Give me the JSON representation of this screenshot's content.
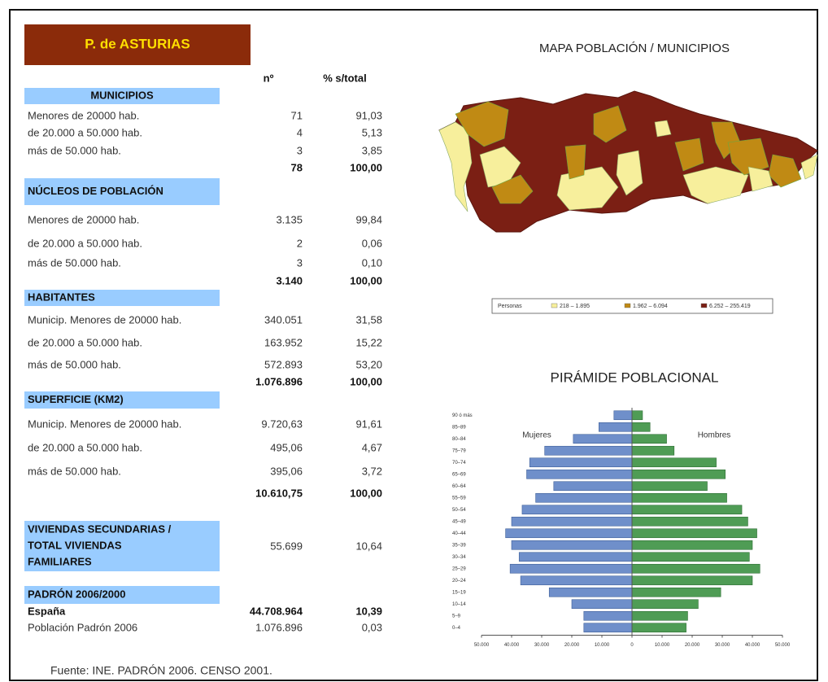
{
  "header": {
    "title": "P. de ASTURIAS",
    "col_n": "nº",
    "col_pct": "% s/total"
  },
  "sections": [
    {
      "header": [
        "MUNICIPIOS"
      ],
      "rows": [
        [
          "Menores de 20000 hab.",
          "71",
          "91,03"
        ],
        [
          "de 20.000 a 50.000 hab.",
          "4",
          "5,13"
        ],
        [
          "más de 50.000 hab.",
          "3",
          "3,85"
        ]
      ],
      "total": [
        "78",
        "100,00"
      ]
    },
    {
      "header": [
        "NÚCLEOS DE POBLACIÓN"
      ],
      "rows": [
        [
          "Menores de 20000 hab.",
          "3.135",
          "99,84"
        ],
        [
          "de 20.000 a 50.000 hab.",
          "2",
          "0,06"
        ],
        [
          "más de 50.000 hab.",
          "3",
          "0,10"
        ]
      ],
      "total": [
        "3.140",
        "100,00"
      ]
    },
    {
      "header": [
        "HABITANTES"
      ],
      "rows": [
        [
          "Municip. Menores de 20000 hab.",
          "340.051",
          "31,58"
        ],
        [
          "de 20.000 a 50.000 hab.",
          "163.952",
          "15,22"
        ],
        [
          "más de 50.000 hab.",
          "572.893",
          "53,20"
        ]
      ],
      "total": [
        "1.076.896",
        "100,00"
      ]
    },
    {
      "header": [
        "SUPERFICIE (KM2)"
      ],
      "rows": [
        [
          "Municip. Menores de 20000 hab.",
          "9.720,63",
          "91,61"
        ],
        [
          "de 20.000 a 50.000 hab.",
          "495,06",
          "4,67"
        ],
        [
          "más de 50.000 hab.",
          "395,06",
          "3,72"
        ]
      ],
      "total": [
        "10.610,75",
        "100,00"
      ]
    },
    {
      "header": [
        "VIVIENDAS SECUNDARIAS /",
        "TOTAL VIVIENDAS",
        "FAMILIARES"
      ],
      "rows": [
        [
          "",
          "55.699",
          "10,64"
        ]
      ]
    },
    {
      "header": [
        "PADRÓN 2006/2000"
      ],
      "rows": [
        [
          "España",
          "44.708.964",
          "10,39"
        ],
        [
          "Población Padrón 2006",
          "1.076.896",
          "0,03"
        ]
      ]
    }
  ],
  "footer": "Fuente: INE. PADRÓN 2006. CENSO 2001.",
  "map": {
    "title": "MAPA POBLACIÓN / MUNICIPIOS",
    "legend_title": "Personas",
    "legend": [
      {
        "label": "218 – 1.895",
        "color": "#f7ef9c"
      },
      {
        "label": "1.962 – 6.094",
        "color": "#c08a14"
      },
      {
        "label": "6.252 – 255.419",
        "color": "#7b1f14"
      }
    ]
  },
  "pyramid": {
    "title": "PIRÁMIDE POBLACIONAL",
    "left_label": "Mujeres",
    "right_label": "Hombres",
    "left_color": "#6f8fca",
    "right_color": "#4f9c55",
    "categories": [
      "90 ó más",
      "85–89",
      "80–84",
      "75–79",
      "70–74",
      "65–69",
      "60–64",
      "55–59",
      "50–54",
      "45–49",
      "40–44",
      "35–39",
      "30–34",
      "25–29",
      "20–24",
      "15–19",
      "10–14",
      "5–9",
      "0–4"
    ],
    "women": [
      6000,
      11000,
      19500,
      29000,
      34000,
      35000,
      26000,
      32000,
      36500,
      40000,
      42000,
      40000,
      37500,
      40500,
      37000,
      27500,
      20000,
      16000,
      16000
    ],
    "men": [
      3500,
      6000,
      11500,
      14000,
      28000,
      31000,
      25000,
      31500,
      36500,
      38500,
      41500,
      40000,
      39000,
      42500,
      40000,
      29500,
      22000,
      18500,
      18000
    ],
    "xlim": [
      -50000,
      50000
    ],
    "xticks": [
      {
        "value": -50000,
        "label": "50.000"
      },
      {
        "value": -40000,
        "label": "40.000"
      },
      {
        "value": -30000,
        "label": "30.000"
      },
      {
        "value": -20000,
        "label": "20.000"
      },
      {
        "value": -10000,
        "label": "10.000"
      },
      0,
      {
        "value": 10000,
        "label": "10.000"
      },
      {
        "value": 20000,
        "label": "20.000"
      },
      {
        "value": 30000,
        "label": "30.000"
      },
      {
        "value": 40000,
        "label": "40.000"
      },
      {
        "value": 50000,
        "label": "50.000"
      }
    ]
  }
}
